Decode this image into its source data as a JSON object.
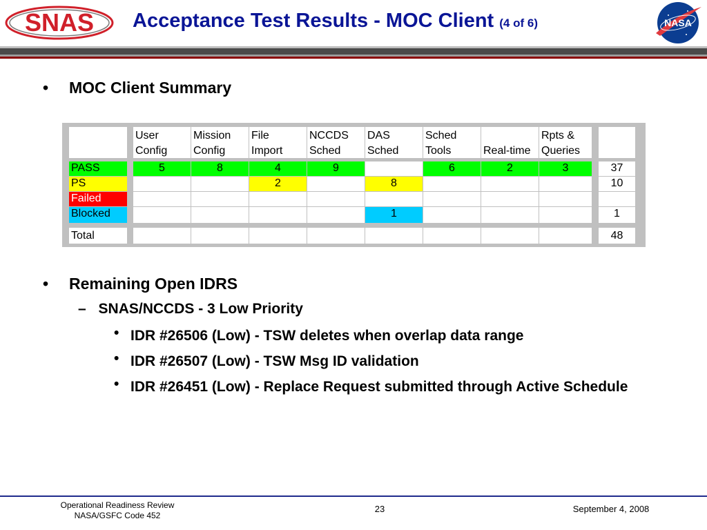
{
  "header": {
    "logo_text": "SNAS",
    "title_main": "Acceptance Test Results - MOC Client",
    "title_sub": "(4 of 6)",
    "nasa_logo_text": "NASA"
  },
  "bullets": {
    "summary": "MOC Client Summary",
    "remaining": "Remaining Open IDRS",
    "sub": "SNAS/NCCDS - 3 Low Priority",
    "items": [
      "IDR #26506 (Low) - TSW deletes when overlap data range",
      "IDR #26507 (Low) - TSW Msg ID validation",
      "IDR #26451 (Low) - Replace Request submitted through Active Schedule"
    ],
    "bullet_glyph": "•",
    "dash_glyph": "–"
  },
  "table": {
    "columns": [
      {
        "l1": "User",
        "l2": "Config"
      },
      {
        "l1": "Mission",
        "l2": "Config"
      },
      {
        "l1": "File",
        "l2": "Import"
      },
      {
        "l1": "NCCDS",
        "l2": "Sched"
      },
      {
        "l1": "DAS",
        "l2": "Sched"
      },
      {
        "l1": "Sched",
        "l2": "Tools"
      },
      {
        "l1": "",
        "l2": "Real-time"
      },
      {
        "l1": "Rpts &",
        "l2": "Queries"
      }
    ],
    "rows": [
      {
        "label": "PASS",
        "values": [
          "5",
          "8",
          "4",
          "9",
          "",
          "6",
          "2",
          "3"
        ],
        "total": "37"
      },
      {
        "label": "PS",
        "values": [
          "",
          "",
          "2",
          "",
          "8",
          "",
          "",
          ""
        ],
        "total": "10"
      },
      {
        "label": "Failed",
        "values": [
          "",
          "",
          "",
          "",
          "",
          "",
          "",
          ""
        ],
        "total": ""
      },
      {
        "label": "Blocked",
        "values": [
          "",
          "",
          "",
          "",
          "1",
          "",
          "",
          ""
        ],
        "total": "1"
      }
    ],
    "total_row": {
      "label": "Total",
      "total": "48"
    }
  },
  "colors": {
    "pass": "#00ff00",
    "ps": "#ffff00",
    "failed": "#ff0000",
    "blocked": "#00ccff",
    "title": "#0a1596",
    "snas_red": "#d0202a"
  },
  "footer": {
    "left_line1": "Operational Readiness Review",
    "left_line2": "NASA/GSFC Code 452",
    "page": "23",
    "date": "September 4, 2008"
  }
}
